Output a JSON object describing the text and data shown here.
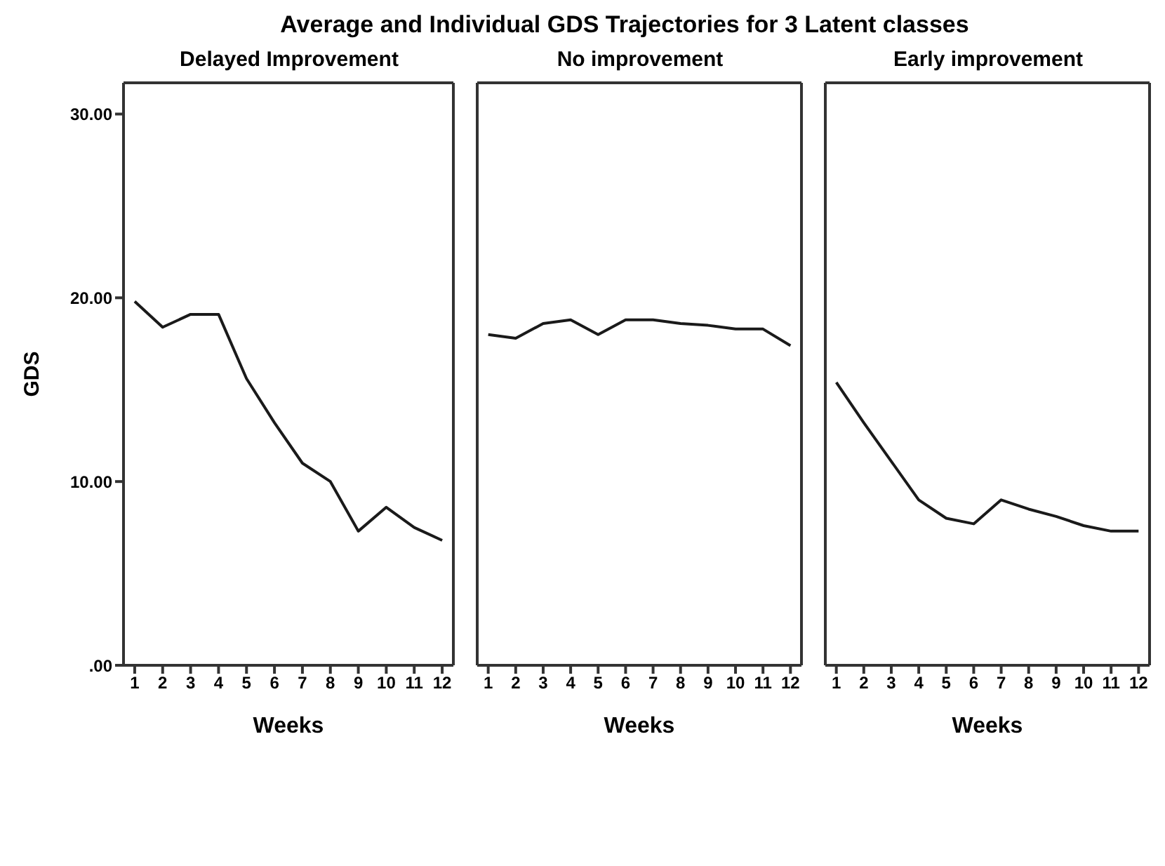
{
  "chart_data": [
    {
      "type": "line",
      "title": "Average and Individual GDS Trajectories for 3 Latent classes",
      "subtitle": "Delayed Improvement",
      "xlabel": "Weeks",
      "ylabel": "GDS",
      "x": [
        1,
        2,
        3,
        4,
        5,
        6,
        7,
        8,
        9,
        10,
        11,
        12
      ],
      "xlim": [
        0.6,
        12.4
      ],
      "xticks": [
        1,
        2,
        3,
        4,
        5,
        6,
        7,
        8,
        9,
        10,
        11,
        12
      ],
      "ylim": [
        0,
        31.7
      ],
      "yticks": [
        {
          "value": 0,
          "label": ".00"
        },
        {
          "value": 10,
          "label": "10.00"
        },
        {
          "value": 20,
          "label": "20.00"
        },
        {
          "value": 30,
          "label": "30.00"
        }
      ],
      "grid": false,
      "legend": false,
      "marker": "none",
      "line_style": "solid",
      "series": [
        {
          "color": "#1a1a1a",
          "values": [
            19.8,
            18.4,
            19.1,
            19.1,
            15.6,
            13.2,
            11.0,
            10.0,
            7.3,
            8.6,
            7.5,
            6.8
          ]
        }
      ]
    },
    {
      "type": "line",
      "subtitle": "No improvement",
      "xlabel": "Weeks",
      "x": [
        1,
        2,
        3,
        4,
        5,
        6,
        7,
        8,
        9,
        10,
        11,
        12
      ],
      "xlim": [
        0.6,
        12.4
      ],
      "xticks": [
        1,
        2,
        3,
        4,
        5,
        6,
        7,
        8,
        9,
        10,
        11,
        12
      ],
      "ylim": [
        0,
        31.7
      ],
      "tick_labels": "x",
      "grid": false,
      "legend": false,
      "marker": "none",
      "line_style": "solid",
      "series": [
        {
          "color": "#1a1a1a",
          "values": [
            18.0,
            17.8,
            18.6,
            18.8,
            18.0,
            18.8,
            18.8,
            18.6,
            18.5,
            18.3,
            18.3,
            17.4
          ]
        }
      ]
    },
    {
      "type": "line",
      "subtitle": "Early improvement",
      "xlabel": "Weeks",
      "x": [
        1,
        2,
        3,
        4,
        5,
        6,
        7,
        8,
        9,
        10,
        11,
        12
      ],
      "xlim": [
        0.6,
        12.4
      ],
      "xticks": [
        1,
        2,
        3,
        4,
        5,
        6,
        7,
        8,
        9,
        10,
        11,
        12
      ],
      "ylim": [
        0,
        31.7
      ],
      "tick_labels": "x",
      "grid": false,
      "legend": false,
      "marker": "none",
      "line_style": "solid",
      "series": [
        {
          "color": "#1a1a1a",
          "values": [
            15.4,
            13.2,
            11.1,
            9.0,
            8.0,
            7.7,
            9.0,
            8.5,
            8.1,
            7.6,
            7.3,
            7.3
          ]
        }
      ]
    }
  ]
}
